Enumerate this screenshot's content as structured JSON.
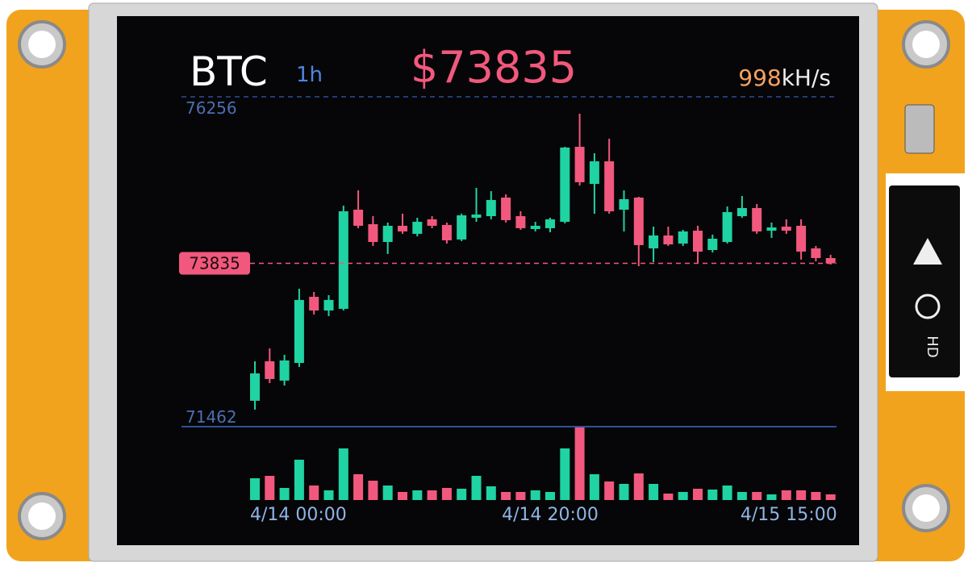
{
  "chart_data": {
    "type": "candlestick",
    "title": "BTC",
    "interval": "1h",
    "price_label": "$73835",
    "hashrate": "998",
    "hashrate_unit": "kH/s",
    "categories": [
      "4/14 00:00",
      null,
      null,
      null,
      null,
      null,
      null,
      null,
      null,
      null,
      null,
      null,
      null,
      null,
      null,
      null,
      null,
      null,
      null,
      null,
      "4/14 20:00",
      null,
      null,
      null,
      null,
      null,
      null,
      null,
      null,
      null,
      null,
      null,
      null,
      null,
      null,
      null,
      null,
      null,
      null,
      "4/15 15:00"
    ],
    "open": [
      71838,
      72412,
      72131,
      72388,
      73349,
      73150,
      73174,
      74615,
      74404,
      74146,
      74381,
      74264,
      74475,
      74393,
      74182,
      74498,
      74521,
      74791,
      74521,
      74334,
      74346,
      74439,
      75529,
      74990,
      75318,
      74615,
      74791,
      74053,
      74240,
      74123,
      74310,
      74029,
      74146,
      74521,
      74639,
      74310,
      74369,
      74381,
      74053,
      73912
    ],
    "close": [
      72236,
      72154,
      72424,
      73303,
      73150,
      73303,
      74592,
      74381,
      74146,
      74381,
      74299,
      74439,
      74381,
      74170,
      74533,
      74545,
      74756,
      74463,
      74346,
      74381,
      74475,
      75518,
      75014,
      75318,
      74592,
      74768,
      74100,
      74240,
      74111,
      74299,
      74006,
      74193,
      74580,
      74639,
      74299,
      74357,
      74310,
      74006,
      73912,
      73835
    ],
    "high": [
      72412,
      72599,
      72506,
      73467,
      73420,
      73373,
      74674,
      74896,
      74521,
      74428,
      74557,
      74498,
      74521,
      74428,
      74557,
      74932,
      74885,
      74838,
      74592,
      74439,
      74498,
      75529,
      76010,
      75436,
      75647,
      74896,
      74803,
      74369,
      74369,
      74322,
      74381,
      74252,
      74662,
      74814,
      74697,
      74428,
      74475,
      74475,
      74088,
      73959
    ],
    "low": [
      71709,
      72095,
      72060,
      72330,
      73092,
      73068,
      73150,
      74346,
      74088,
      73971,
      74264,
      74228,
      74346,
      74123,
      74158,
      74439,
      74475,
      74428,
      74322,
      74299,
      74287,
      74416,
      74967,
      74557,
      74557,
      74299,
      73795,
      73853,
      74088,
      74088,
      73842,
      73994,
      74123,
      74498,
      74264,
      74205,
      74264,
      73889,
      73865,
      73818
    ],
    "volume": [
      27,
      30,
      15,
      50,
      18,
      12,
      64,
      32,
      24,
      18,
      10,
      12,
      12,
      15,
      14,
      30,
      17,
      10,
      10,
      12,
      10,
      64,
      90,
      32,
      23,
      20,
      33,
      20,
      8,
      10,
      14,
      13,
      18,
      10,
      10,
      7,
      12,
      12,
      10,
      7
    ],
    "ylim": [
      71462,
      76256
    ],
    "yticks": [
      71462,
      76256
    ],
    "current_price": 73835,
    "up_color": "#1fd3a2",
    "down_color": "#f2587d"
  }
}
